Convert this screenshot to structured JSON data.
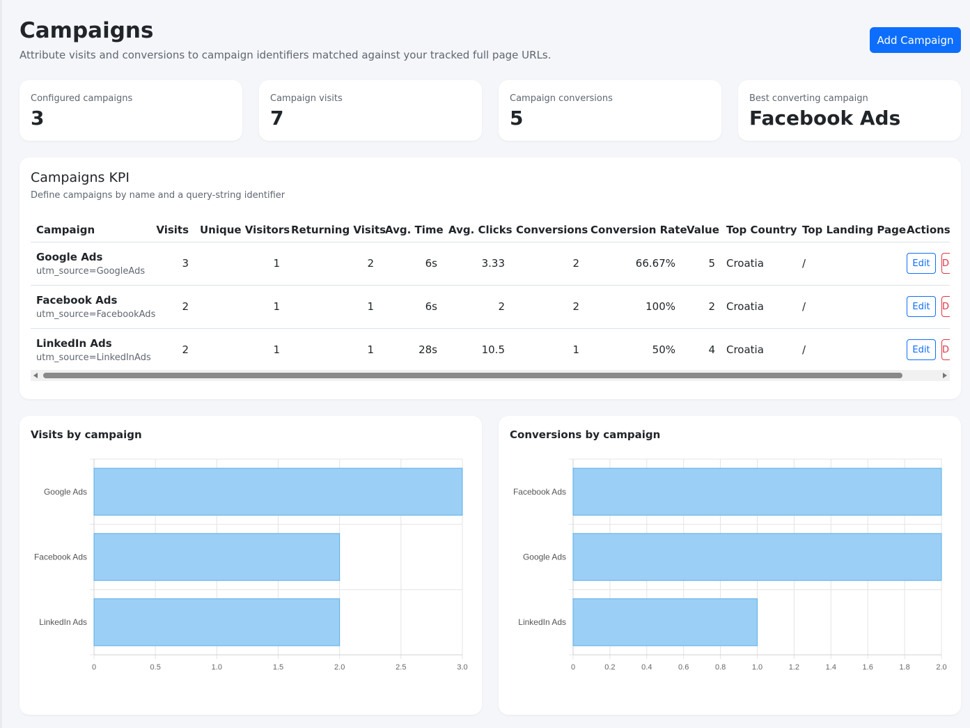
{
  "header": {
    "title": "Campaigns",
    "subtitle": "Attribute visits and conversions to campaign identifiers matched against your tracked full page URLs.",
    "add_button": "Add Campaign"
  },
  "stats": [
    {
      "label": "Configured campaigns",
      "value": "3"
    },
    {
      "label": "Campaign visits",
      "value": "7"
    },
    {
      "label": "Campaign conversions",
      "value": "5"
    },
    {
      "label": "Best converting campaign",
      "value": "Facebook Ads"
    }
  ],
  "kpi": {
    "title": "Campaigns KPI",
    "subtitle": "Define campaigns by name and a query-string identifier",
    "columns": [
      "Campaign",
      "Visits",
      "Unique Visitors",
      "Returning Visits",
      "Avg. Time",
      "Avg. Clicks",
      "Conversions",
      "Conversion Rate",
      "Value",
      "Top Country",
      "Top Landing Page",
      "Actions"
    ],
    "edit_label": "Edit",
    "delete_label": "Delete",
    "rows": [
      {
        "name": "Google Ads",
        "identifier": "utm_source=GoogleAds",
        "visits": "3",
        "unique": "1",
        "returning": "2",
        "avg_time": "6s",
        "avg_clicks": "3.33",
        "conversions": "2",
        "rate": "66.67%",
        "value": "5",
        "country": "Croatia",
        "landing": "/"
      },
      {
        "name": "Facebook Ads",
        "identifier": "utm_source=FacebookAds",
        "visits": "2",
        "unique": "1",
        "returning": "1",
        "avg_time": "6s",
        "avg_clicks": "2",
        "conversions": "2",
        "rate": "100%",
        "value": "2",
        "country": "Croatia",
        "landing": "/"
      },
      {
        "name": "LinkedIn Ads",
        "identifier": "utm_source=LinkedInAds",
        "visits": "2",
        "unique": "1",
        "returning": "1",
        "avg_time": "28s",
        "avg_clicks": "10.5",
        "conversions": "1",
        "rate": "50%",
        "value": "4",
        "country": "Croatia",
        "landing": "/"
      }
    ]
  },
  "chart_data": [
    {
      "type": "bar",
      "orientation": "horizontal",
      "title": "Visits by campaign",
      "categories": [
        "Google Ads",
        "Facebook Ads",
        "LinkedIn Ads"
      ],
      "values": [
        3,
        2,
        2
      ],
      "xlim": [
        0,
        3
      ],
      "ticks": [
        "0",
        "0.5",
        "1.0",
        "1.5",
        "2.0",
        "2.5",
        "3.0"
      ],
      "bar_color": "#9ccff5",
      "bar_border": "#5aaee8"
    },
    {
      "type": "bar",
      "orientation": "horizontal",
      "title": "Conversions by campaign",
      "categories": [
        "Facebook Ads",
        "Google Ads",
        "LinkedIn Ads"
      ],
      "values": [
        2,
        2,
        1
      ],
      "xlim": [
        0,
        2
      ],
      "ticks": [
        "0",
        "0.2",
        "0.4",
        "0.6",
        "0.8",
        "1.0",
        "1.2",
        "1.4",
        "1.6",
        "1.8",
        "2.0"
      ],
      "bar_color": "#9ccff5",
      "bar_border": "#5aaee8"
    }
  ]
}
